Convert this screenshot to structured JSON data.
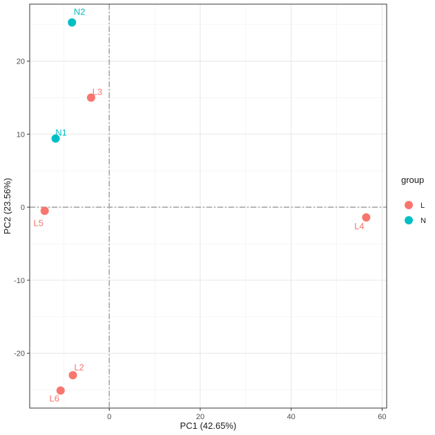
{
  "chart_data": {
    "type": "scatter",
    "xlabel": "PC1 (42.65%)",
    "ylabel": "PC2 (23.56%)",
    "xlim": [
      -17.5,
      61
    ],
    "ylim": [
      -27.5,
      27.8
    ],
    "xticks": [
      0,
      20,
      40,
      60
    ],
    "xtick_labels": [
      "0",
      "20",
      "40",
      "60"
    ],
    "yticks": [
      -20,
      -10,
      0,
      10,
      20
    ],
    "ytick_labels": [
      "-20",
      "-10",
      "0",
      "10",
      "20"
    ],
    "grid": true,
    "reference_lines": {
      "x": 0,
      "y": 0
    },
    "legend": {
      "title": "group",
      "placement": "right",
      "entries": [
        {
          "name": "L",
          "color": "#F8766D"
        },
        {
          "name": "N",
          "color": "#00BFC4"
        }
      ]
    },
    "series": [
      {
        "name": "L",
        "color": "#F8766D",
        "points": [
          {
            "label": "L3",
            "x": -4.0,
            "y": 15.0
          },
          {
            "label": "L5",
            "x": -14.2,
            "y": -0.5
          },
          {
            "label": "L4",
            "x": 56.5,
            "y": -1.4
          },
          {
            "label": "L2",
            "x": -8.0,
            "y": -23.0
          },
          {
            "label": "L6",
            "x": -10.7,
            "y": -25.1
          }
        ]
      },
      {
        "name": "N",
        "color": "#00BFC4",
        "points": [
          {
            "label": "N2",
            "x": -8.2,
            "y": 25.3
          },
          {
            "label": "N1",
            "x": -11.8,
            "y": 9.4
          }
        ]
      }
    ]
  }
}
